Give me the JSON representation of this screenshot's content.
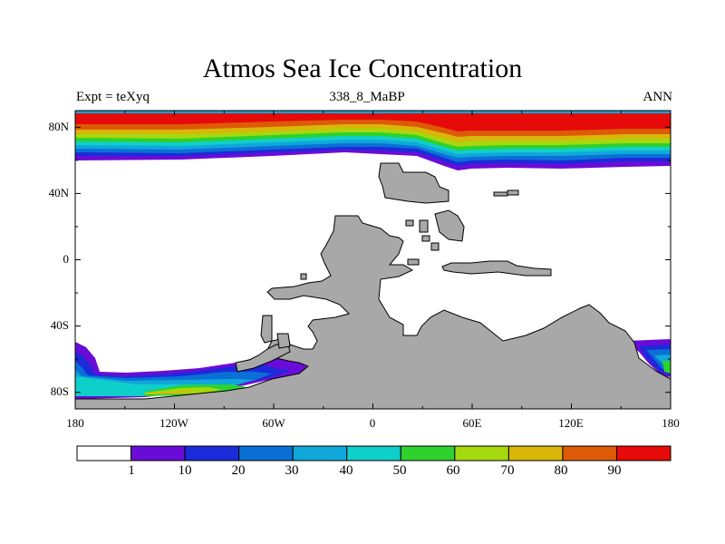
{
  "title": "Atmos Sea Ice Concentration",
  "subtitle_left": "Expt = teXyq",
  "subtitle_center": "338_8_MaBP",
  "subtitle_right": "ANN",
  "lat_ticks": [
    "80N",
    "40N",
    "0",
    "40S",
    "80S"
  ],
  "lon_ticks": [
    "180",
    "120W",
    "60W",
    "0",
    "60E",
    "120E",
    "180"
  ],
  "colorbar": {
    "labels": [
      "1",
      "10",
      "20",
      "30",
      "40",
      "50",
      "60",
      "70",
      "80",
      "90"
    ],
    "colors": [
      "#ffffff",
      "#6a0cd8",
      "#1c2bd9",
      "#0a70d6",
      "#10a7da",
      "#0fcfca",
      "#2ed12e",
      "#a5d80d",
      "#d9b70a",
      "#dd5a07",
      "#e60a0a"
    ]
  },
  "colors": {
    "land": "#a8a8a8",
    "ocean": "#ffffff",
    "axes": "#000000"
  }
}
